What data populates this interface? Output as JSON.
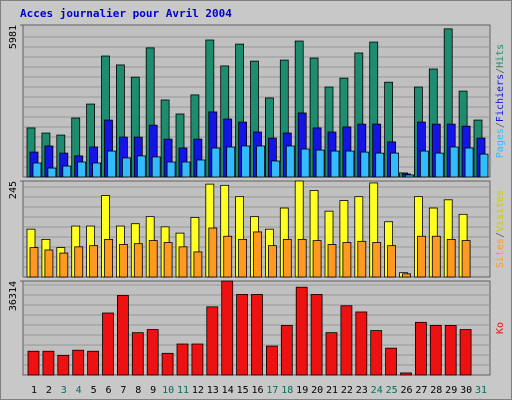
{
  "chart_data": {
    "type": "bar",
    "title": "Acces journalier pour Avril 2004",
    "categories": [
      "1",
      "2",
      "3",
      "4",
      "5",
      "6",
      "7",
      "8",
      "9",
      "10",
      "11",
      "12",
      "13",
      "14",
      "15",
      "16",
      "17",
      "18",
      "19",
      "20",
      "21",
      "22",
      "23",
      "24",
      "25",
      "26",
      "27",
      "28",
      "29",
      "30",
      "31"
    ],
    "category_colors": [
      "#000000",
      "#000000",
      "#006e5a",
      "#006e5a",
      "#000000",
      "#000000",
      "#000000",
      "#000000",
      "#000000",
      "#006e5a",
      "#006e5a",
      "#000000",
      "#000000",
      "#000000",
      "#000000",
      "#000000",
      "#006e5a",
      "#006e5a",
      "#000000",
      "#000000",
      "#000000",
      "#000000",
      "#000000",
      "#006e5a",
      "#006e5a",
      "#000000",
      "#000000",
      "#000000",
      "#000000",
      "#000000",
      "#006e5a"
    ],
    "legend_separator": "/",
    "panels": [
      {
        "ylim": [
          0,
          5981
        ],
        "yticks": [
          5981
        ],
        "series": [
          {
            "name": "Hits",
            "color": "#1e8c6e",
            "values": [
              1930,
              1730,
              1650,
              2320,
              2870,
              4760,
              4410,
              3930,
              5080,
              3030,
              2480,
              3230,
              5390,
              4370,
              5230,
              4560,
              3110,
              4600,
              5350,
              4680,
              3540,
              3890,
              4880,
              5310,
              3730,
              160,
              3540,
              4250,
              5830,
              3380,
              2240
            ]
          },
          {
            "name": "Fichiers",
            "color": "#1414e6",
            "values": [
              980,
              1220,
              940,
              830,
              1180,
              2240,
              1570,
              1570,
              2040,
              1490,
              1140,
              1490,
              2560,
              2280,
              2160,
              1770,
              1530,
              1730,
              2520,
              1930,
              1770,
              1970,
              2080,
              2080,
              1380,
              120,
              2160,
              2080,
              2080,
              2000,
              1530
            ]
          },
          {
            "name": "Pages",
            "color": "#33bbff",
            "values": [
              550,
              350,
              430,
              590,
              550,
              1020,
              750,
              830,
              790,
              590,
              590,
              670,
              1140,
              1180,
              1220,
              1220,
              630,
              1220,
              1100,
              1060,
              1020,
              1020,
              980,
              940,
              940,
              80,
              1020,
              940,
              1180,
              1140,
              900
            ]
          }
        ]
      },
      {
        "ylim": [
          0,
          245
        ],
        "yticks": [
          245
        ],
        "series": [
          {
            "name": "Visites",
            "color": "#ffff22",
            "values": [
              122,
              96,
              75,
              130,
              130,
              208,
              130,
              136,
              154,
              128,
              112,
              152,
              237,
              234,
              205,
              154,
              122,
              176,
              245,
              221,
              168,
              195,
              205,
              240,
              141,
              11,
              205,
              176,
              197,
              160,
              null
            ]
          },
          {
            "name": "Sites",
            "color": "#ff9922",
            "values": [
              75,
              69,
              61,
              77,
              80,
              96,
              83,
              85,
              93,
              88,
              77,
              64,
              125,
              104,
              96,
              115,
              80,
              96,
              96,
              93,
              83,
              88,
              91,
              88,
              80,
              8,
              104,
              104,
              96,
              93,
              null
            ]
          }
        ]
      },
      {
        "ylim": [
          0,
          36314
        ],
        "yticks": [
          36314
        ],
        "series": [
          {
            "name": "Ko",
            "color": "#ee1111",
            "values": [
              9180,
              9180,
              7580,
              9580,
              9180,
              23950,
              30720,
              16360,
              17560,
              8380,
              11970,
              11970,
              26340,
              36314,
              31120,
              31120,
              11170,
              19150,
              33920,
              31120,
              16360,
              26740,
              24350,
              17160,
              10370,
              800,
              20350,
              19150,
              19150,
              17560,
              null
            ]
          }
        ]
      }
    ]
  }
}
